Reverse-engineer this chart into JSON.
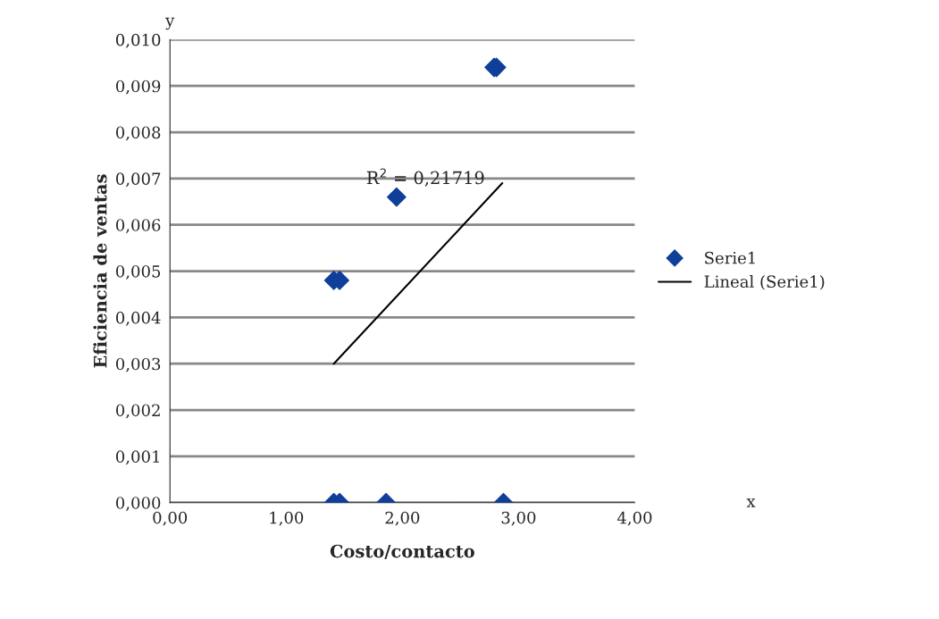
{
  "chart_data": {
    "type": "scatter",
    "xlabel": "Costo/contacto",
    "ylabel": "Eficiencia de ventas",
    "series": [
      {
        "name": "Serie1",
        "color": "#0f3f99",
        "marker": "diamond",
        "x": [
          1.41,
          1.46,
          1.41,
          1.46,
          1.86,
          1.95,
          2.79,
          2.81,
          2.87
        ],
        "values": [
          0.0048,
          0.0048,
          0.0,
          0.0,
          0.0,
          0.0066,
          0.0094,
          0.0094,
          0.0
        ]
      },
      {
        "name": "Lineal (Serie1)",
        "type": "line",
        "color": "#000000",
        "marker": "none",
        "line_style": "solid",
        "x": [
          1.41,
          2.86
        ],
        "values": [
          0.003,
          0.0069
        ]
      }
    ],
    "xlim": [
      0,
      4
    ],
    "xticks": [
      {
        "value": 0,
        "label": "0,00"
      },
      {
        "value": 1,
        "label": "1,00"
      },
      {
        "value": 2,
        "label": "2,00"
      },
      {
        "value": 3,
        "label": "3,00"
      },
      {
        "value": 4,
        "label": "4,00"
      }
    ],
    "ylim": [
      0,
      0.01
    ],
    "yticks": [
      {
        "value": 0,
        "label": "0,000"
      },
      {
        "value": 0.001,
        "label": "0,001"
      },
      {
        "value": 0.002,
        "label": "0,002"
      },
      {
        "value": 0.003,
        "label": "0,003"
      },
      {
        "value": 0.004,
        "label": "0,004"
      },
      {
        "value": 0.005,
        "label": "0,005"
      },
      {
        "value": 0.006,
        "label": "0,006"
      },
      {
        "value": 0.007,
        "label": "0,007"
      },
      {
        "value": 0.008,
        "label": "0,008"
      },
      {
        "value": 0.009,
        "label": "0,009"
      },
      {
        "value": 0.01,
        "label": "0,010"
      }
    ],
    "grid": "y",
    "legend": "right",
    "annotations": [
      "R$^{2}$ = 0,21719",
      "x",
      "y"
    ]
  }
}
